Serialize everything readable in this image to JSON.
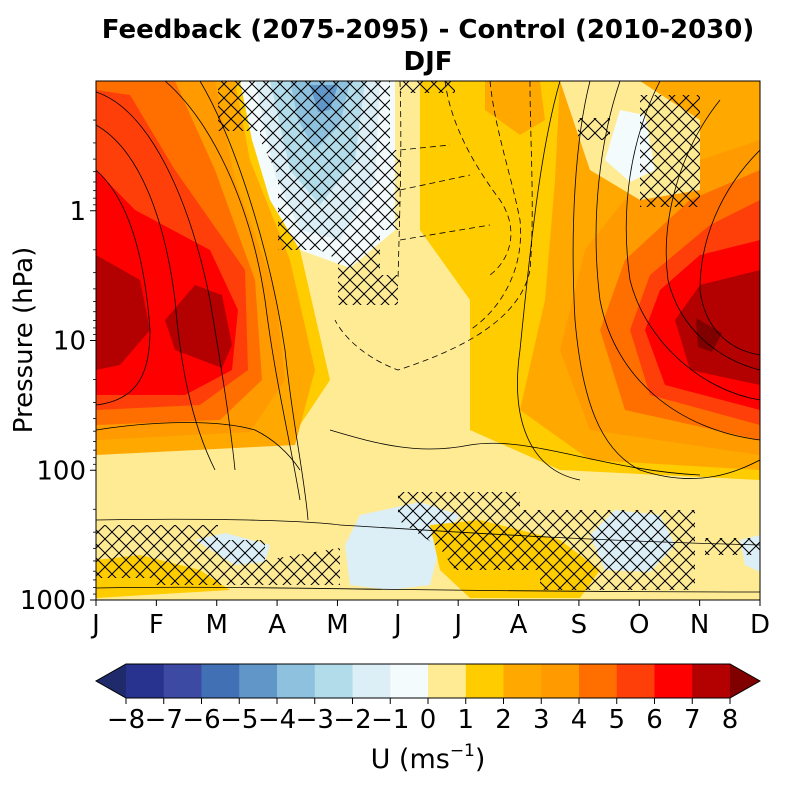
{
  "chart_data": {
    "type": "heatmap",
    "title_line1": "Feedback (2075-2095) - Control (2010-2030)",
    "title_line2": "DJF",
    "xlabel": "",
    "ylabel": "Pressure (hPa)",
    "x_ticks": [
      "J",
      "F",
      "M",
      "A",
      "M",
      "J",
      "J",
      "A",
      "S",
      "O",
      "N",
      "D"
    ],
    "y_scale": "log",
    "y_inverted": true,
    "ylim": [
      1000,
      0.1
    ],
    "y_ticks": [
      {
        "value": 1,
        "label": "1"
      },
      {
        "value": 10,
        "label": "10"
      },
      {
        "value": 100,
        "label": "100"
      },
      {
        "value": 1000,
        "label": "1000"
      }
    ],
    "colorbar": {
      "label": "U (ms",
      "label_superscript": "−1",
      "label_close": ")",
      "extend": "both",
      "levels": [
        -8,
        -7,
        -6,
        -5,
        -4,
        -3,
        -2,
        -1,
        0,
        1,
        2,
        3,
        4,
        5,
        6,
        7,
        8
      ],
      "tick_labels": [
        "−8",
        "−7",
        "−6",
        "−5",
        "−4",
        "−3",
        "−2",
        "−1",
        "0",
        "1",
        "2",
        "3",
        "4",
        "5",
        "6",
        "7",
        "8"
      ],
      "colors": [
        "#1f2a6b",
        "#28338f",
        "#3d4aa3",
        "#4270b5",
        "#6197c8",
        "#8ec1dd",
        "#b2dcea",
        "#dceef6",
        "#f3fbfd",
        "#ffeb94",
        "#ffcc00",
        "#ffa800",
        "#ff9a00",
        "#ff6f00",
        "#ff3f0a",
        "#ff0000",
        "#b30000",
        "#800000"
      ]
    },
    "hatching": "cross-hatched regions mark significance",
    "contours": "solid = positive, dashed = negative"
  }
}
